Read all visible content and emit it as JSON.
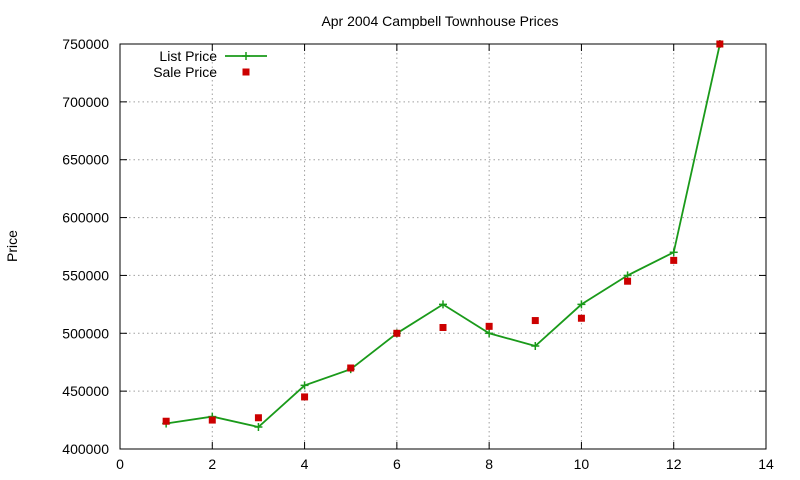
{
  "chart_data": {
    "type": "line",
    "title": "Apr 2004 Campbell Townhouse Prices",
    "xlabel": "",
    "ylabel": "Price",
    "xlim": [
      0,
      14
    ],
    "ylim": [
      400000,
      750000
    ],
    "xticks": [
      0,
      2,
      4,
      6,
      8,
      10,
      12,
      14
    ],
    "yticks": [
      400000,
      450000,
      500000,
      550000,
      600000,
      650000,
      700000,
      750000
    ],
    "grid": true,
    "legend_position": "top-left",
    "series": [
      {
        "name": "List Price",
        "style": "line-with-plus-markers",
        "color": "#1a9a1a",
        "x": [
          1,
          2,
          3,
          4,
          5,
          6,
          7,
          8,
          9,
          10,
          11,
          12,
          13
        ],
        "y": [
          422000,
          428000,
          419000,
          455000,
          469000,
          500000,
          525000,
          500000,
          489000,
          525000,
          550000,
          570000,
          750000
        ]
      },
      {
        "name": "Sale Price",
        "style": "square-markers",
        "color": "#cc0000",
        "x": [
          1,
          2,
          3,
          4,
          5,
          6,
          7,
          8,
          9,
          10,
          11,
          12,
          13
        ],
        "y": [
          424000,
          425000,
          427000,
          445000,
          470000,
          500000,
          505000,
          506000,
          511000,
          513000,
          545000,
          563000,
          750000
        ]
      }
    ]
  }
}
